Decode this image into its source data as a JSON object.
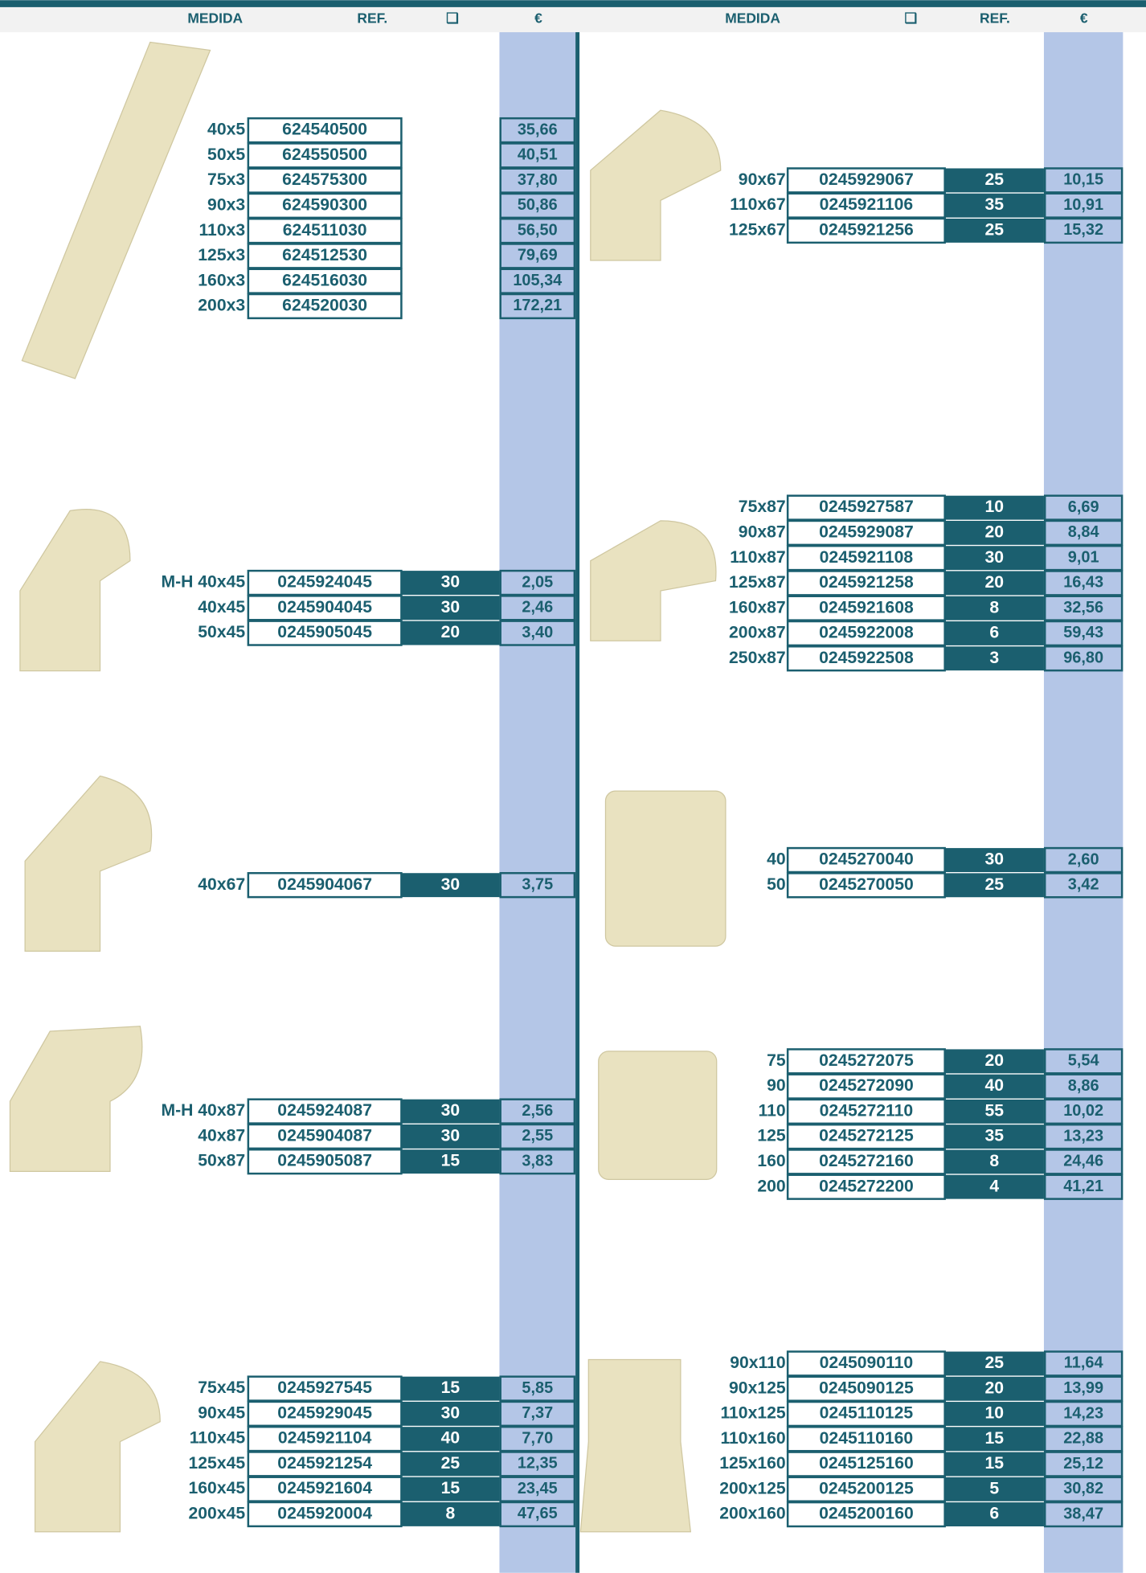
{
  "header": {
    "left": [
      "MEDIDA",
      "REF.",
      "❑",
      "€"
    ],
    "right": [
      "MEDIDA",
      "❑",
      "REF.",
      "€"
    ]
  },
  "left_groups": [
    {
      "rows": [
        {
          "medida": "40x5",
          "ref": "624540500",
          "price": "35,66"
        },
        {
          "medida": "50x5",
          "ref": "624550500",
          "price": "40,51"
        },
        {
          "medida": "75x3",
          "ref": "624575300",
          "price": "37,80"
        },
        {
          "medida": "90x3",
          "ref": "624590300",
          "price": "50,86"
        },
        {
          "medida": "110x3",
          "ref": "624511030",
          "price": "56,50"
        },
        {
          "medida": "125x3",
          "ref": "624512530",
          "price": "79,69"
        },
        {
          "medida": "160x3",
          "ref": "624516030",
          "price": "105,34"
        },
        {
          "medida": "200x3",
          "ref": "624520030",
          "price": "172,21"
        }
      ]
    },
    {
      "rows": [
        {
          "medida": "M-H 40x45",
          "ref": "0245924045",
          "qty": "30",
          "price": "2,05"
        },
        {
          "medida": "40x45",
          "ref": "0245904045",
          "qty": "30",
          "price": "2,46"
        },
        {
          "medida": "50x45",
          "ref": "0245905045",
          "qty": "20",
          "price": "3,40"
        }
      ]
    },
    {
      "rows": [
        {
          "medida": "40x67",
          "ref": "0245904067",
          "qty": "30",
          "price": "3,75"
        }
      ]
    },
    {
      "rows": [
        {
          "medida": "M-H 40x87",
          "ref": "0245924087",
          "qty": "30",
          "price": "2,56"
        },
        {
          "medida": "40x87",
          "ref": "0245904087",
          "qty": "30",
          "price": "2,55"
        },
        {
          "medida": "50x87",
          "ref": "0245905087",
          "qty": "15",
          "price": "3,83"
        }
      ]
    },
    {
      "rows": [
        {
          "medida": "75x45",
          "ref": "0245927545",
          "qty": "15",
          "price": "5,85"
        },
        {
          "medida": "90x45",
          "ref": "0245929045",
          "qty": "30",
          "price": "7,37"
        },
        {
          "medida": "110x45",
          "ref": "0245921104",
          "qty": "40",
          "price": "7,70"
        },
        {
          "medida": "125x45",
          "ref": "0245921254",
          "qty": "25",
          "price": "12,35"
        },
        {
          "medida": "160x45",
          "ref": "0245921604",
          "qty": "15",
          "price": "23,45"
        },
        {
          "medida": "200x45",
          "ref": "0245920004",
          "qty": "8",
          "price": "47,65"
        }
      ]
    }
  ],
  "right_groups": [
    {
      "rows": [
        {
          "medida": "90x67",
          "ref": "0245929067",
          "qty": "25",
          "price": "10,15"
        },
        {
          "medida": "110x67",
          "ref": "0245921106",
          "qty": "35",
          "price": "10,91"
        },
        {
          "medida": "125x67",
          "ref": "0245921256",
          "qty": "25",
          "price": "15,32"
        }
      ]
    },
    {
      "rows": [
        {
          "medida": "75x87",
          "ref": "0245927587",
          "qty": "10",
          "price": "6,69"
        },
        {
          "medida": "90x87",
          "ref": "0245929087",
          "qty": "20",
          "price": "8,84"
        },
        {
          "medida": "110x87",
          "ref": "0245921108",
          "qty": "30",
          "price": "9,01"
        },
        {
          "medida": "125x87",
          "ref": "0245921258",
          "qty": "20",
          "price": "16,43"
        },
        {
          "medida": "160x87",
          "ref": "0245921608",
          "qty": "8",
          "price": "32,56"
        },
        {
          "medida": "200x87",
          "ref": "0245922008",
          "qty": "6",
          "price": "59,43"
        },
        {
          "medida": "250x87",
          "ref": "0245922508",
          "qty": "3",
          "price": "96,80"
        }
      ]
    },
    {
      "rows": [
        {
          "medida": "40",
          "ref": "0245270040",
          "qty": "30",
          "price": "2,60"
        },
        {
          "medida": "50",
          "ref": "0245270050",
          "qty": "25",
          "price": "3,42"
        }
      ]
    },
    {
      "rows": [
        {
          "medida": "75",
          "ref": "0245272075",
          "qty": "20",
          "price": "5,54"
        },
        {
          "medida": "90",
          "ref": "0245272090",
          "qty": "40",
          "price": "8,86"
        },
        {
          "medida": "110",
          "ref": "0245272110",
          "qty": "55",
          "price": "10,02"
        },
        {
          "medida": "125",
          "ref": "0245272125",
          "qty": "35",
          "price": "13,23"
        },
        {
          "medida": "160",
          "ref": "0245272160",
          "qty": "8",
          "price": "24,46"
        },
        {
          "medida": "200",
          "ref": "0245272200",
          "qty": "4",
          "price": "41,21"
        }
      ]
    },
    {
      "rows": [
        {
          "medida": "90x110",
          "ref": "0245090110",
          "qty": "25",
          "price": "11,64"
        },
        {
          "medida": "90x125",
          "ref": "0245090125",
          "qty": "20",
          "price": "13,99"
        },
        {
          "medida": "110x125",
          "ref": "0245110125",
          "qty": "10",
          "price": "14,23"
        },
        {
          "medida": "110x160",
          "ref": "0245110160",
          "qty": "15",
          "price": "22,88"
        },
        {
          "medida": "125x160",
          "ref": "0245125160",
          "qty": "15",
          "price": "25,12"
        },
        {
          "medida": "200x125",
          "ref": "0245200125",
          "qty": "5",
          "price": "30,82"
        },
        {
          "medida": "200x160",
          "ref": "0245200160",
          "qty": "6",
          "price": "38,47"
        }
      ]
    }
  ]
}
